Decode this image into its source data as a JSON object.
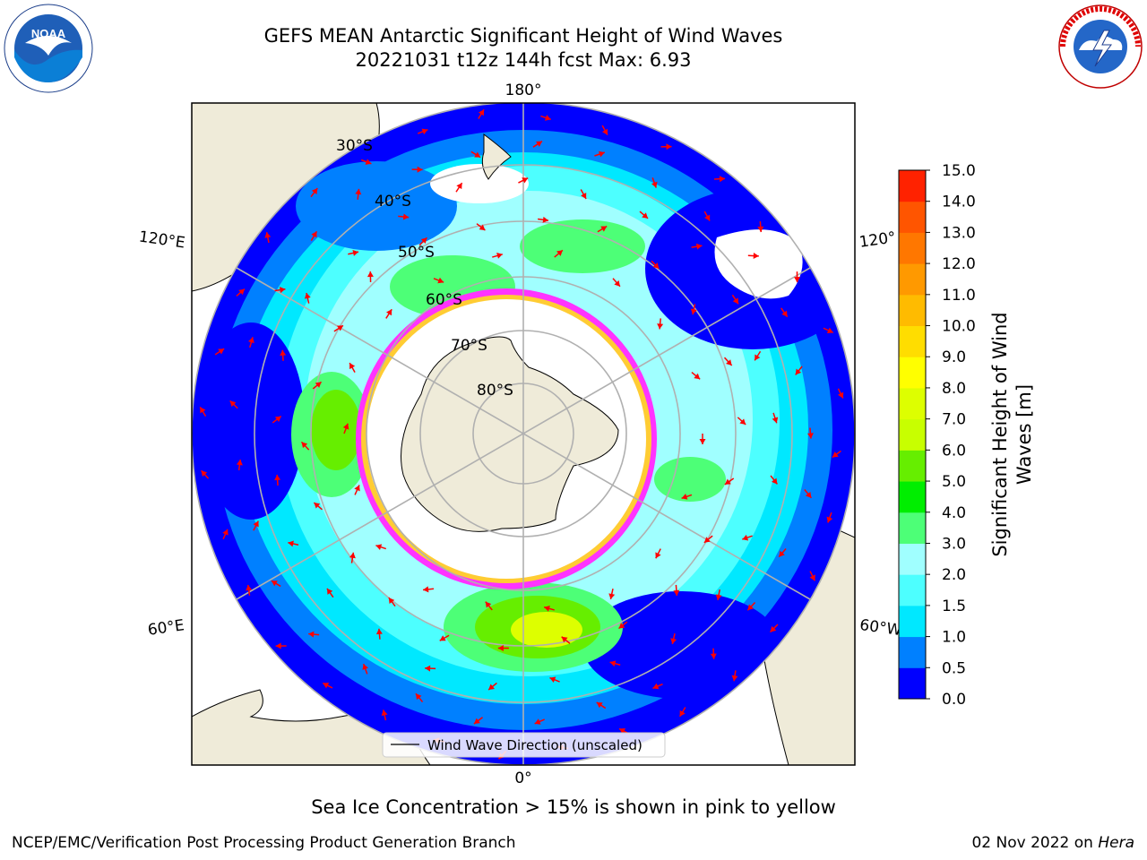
{
  "title": {
    "line1": "GEFS MEAN Antarctic Significant Height of Wind Waves",
    "line2": "20221031 t12z 144h fcst   Max: 6.93"
  },
  "map": {
    "projection": "south polar stereographic",
    "longitude_labels": [
      "180°",
      "120°E",
      "120°",
      "60°E",
      "60°W",
      "0°"
    ],
    "latitude_labels": [
      "30°S",
      "40°S",
      "50°S",
      "60°S",
      "70°S",
      "80°S"
    ],
    "legend_label": "Wind Wave Direction (unscaled)",
    "land_color": "#efebd9",
    "arrow_color": "#ff0000",
    "sea_ice_colors": [
      "#ff33ff",
      "#ff9966",
      "#ffcc33"
    ]
  },
  "colorbar": {
    "label_line1": "Significant Height of Wind",
    "label_line2": "Waves [m]",
    "ticks": [
      "0.0",
      "0.5",
      "1.0",
      "1.5",
      "2.0",
      "3.0",
      "4.0",
      "5.0",
      "6.0",
      "7.0",
      "8.0",
      "9.0",
      "10.0",
      "11.0",
      "12.0",
      "13.0",
      "14.0",
      "15.0"
    ],
    "colors": [
      "#0000ff",
      "#0080ff",
      "#00e8ff",
      "#4dffff",
      "#a0ffff",
      "#4dff77",
      "#00ee00",
      "#66ee00",
      "#c8ff00",
      "#ddff00",
      "#ffff00",
      "#ffdd00",
      "#ffbb00",
      "#ff9900",
      "#ff7700",
      "#ff5500",
      "#ff2200"
    ]
  },
  "footer": {
    "sea_ice_note": "Sea Ice Concentration > 15% is shown in pink to yellow",
    "branch": "NCEP/EMC/Verification Post Processing Product Generation Branch",
    "date": "02 Nov 2022 on",
    "machine": "Hera"
  },
  "logos": {
    "noaa_text": "NOAA",
    "nws_text": "NATIONAL WEATHER SERVICE"
  }
}
